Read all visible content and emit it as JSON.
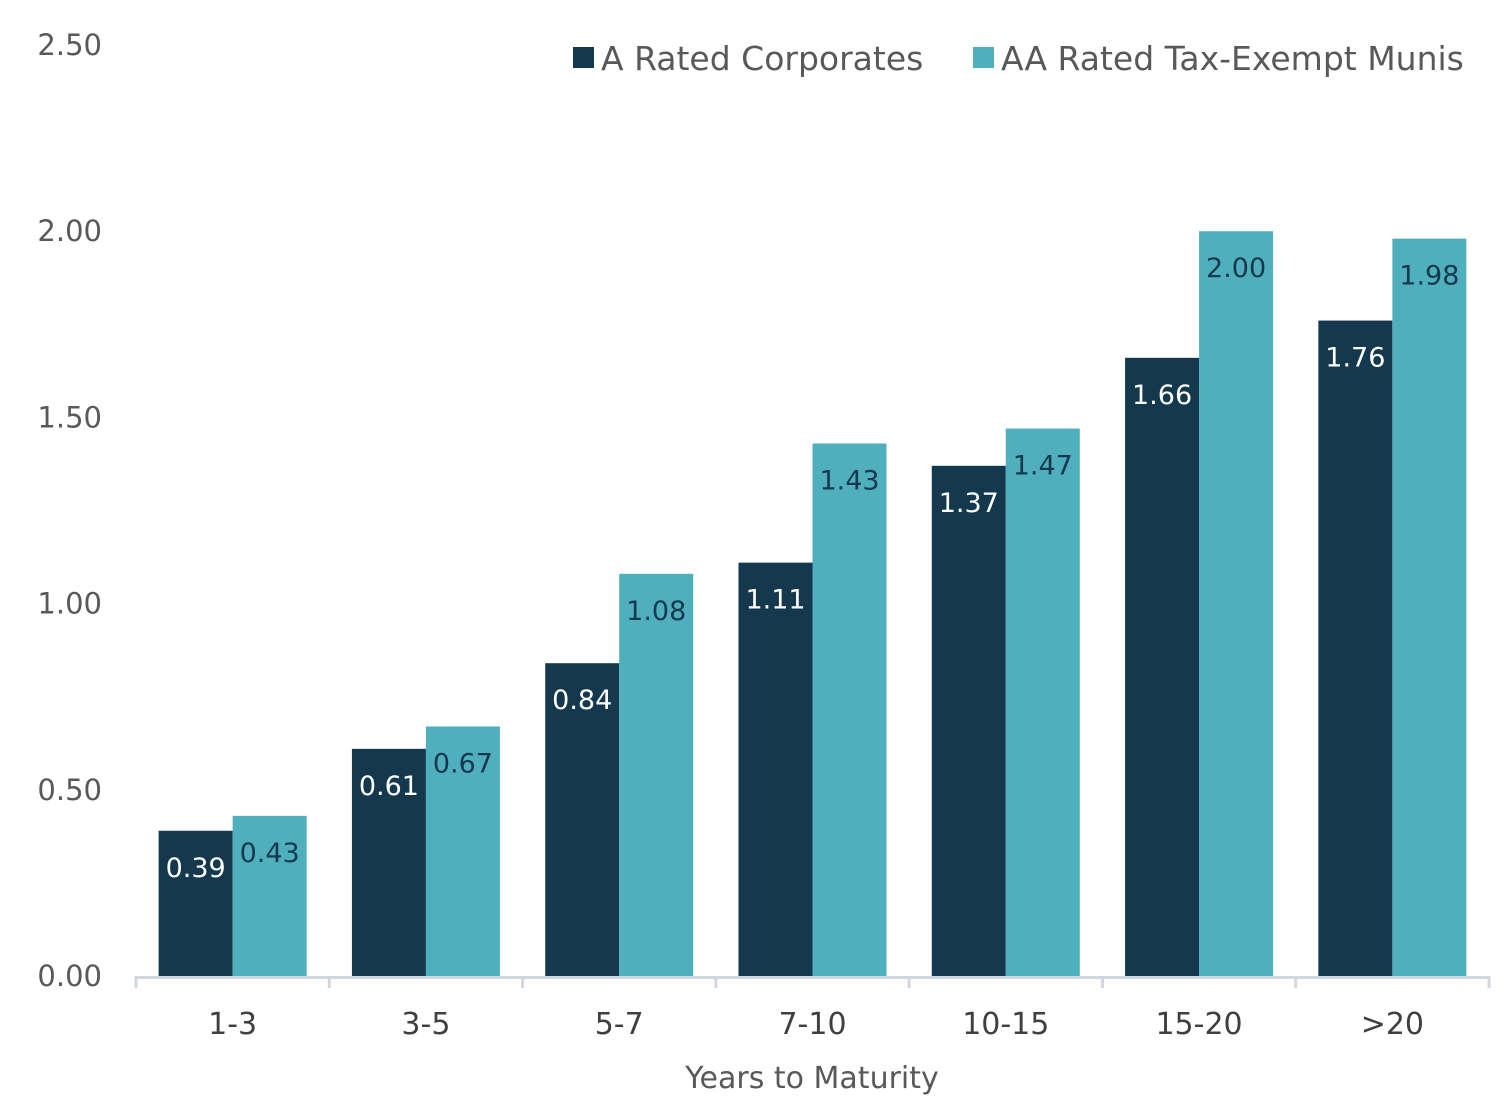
{
  "chart_data": {
    "type": "bar",
    "title": "",
    "xlabel": "Years to Maturity",
    "ylabel": "",
    "ylim": [
      0,
      2.5
    ],
    "yticks": [
      "0.00",
      "0.50",
      "1.00",
      "1.50",
      "2.00",
      "2.50"
    ],
    "ytick_values": [
      0,
      0.5,
      1.0,
      1.5,
      2.0,
      2.5
    ],
    "grid": false,
    "legend_position": "top-right",
    "categories": [
      "1-3",
      "3-5",
      "5-7",
      "7-10",
      "10-15",
      "15-20",
      ">20"
    ],
    "series": [
      {
        "name": "A Rated Corporates",
        "color": "#14394f",
        "label_color": "#ffffff",
        "values": [
          0.39,
          0.61,
          0.84,
          1.11,
          1.37,
          1.66,
          1.76
        ],
        "labels": [
          "0.39",
          "0.61",
          "0.84",
          "1.11",
          "1.37",
          "1.66",
          "1.76"
        ]
      },
      {
        "name": "AA Rated Tax-Exempt Munis",
        "color": "#4fafbc",
        "label_color": "#14394f",
        "values": [
          0.43,
          0.67,
          1.08,
          1.43,
          1.47,
          2.0,
          1.98
        ],
        "labels": [
          "0.43",
          "0.67",
          "1.08",
          "1.43",
          "1.47",
          "2.00",
          "1.98"
        ]
      }
    ],
    "axis_color": "#d0d7de"
  }
}
